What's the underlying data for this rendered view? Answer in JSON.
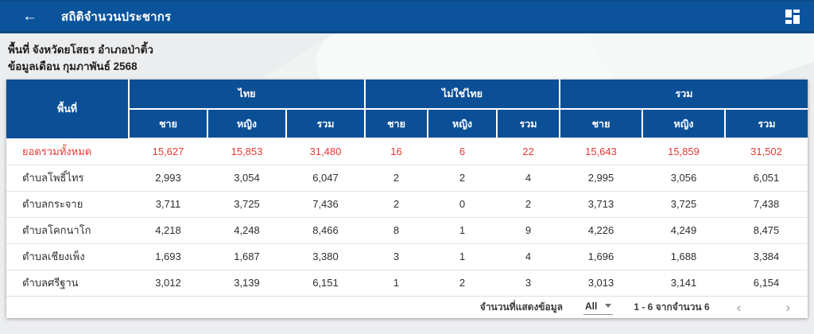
{
  "app_bar": {
    "title": "สถิติจำนวนประชากร",
    "back_icon": "arrow-left",
    "grid_icon": "dashboard-grid",
    "bar_color": "#0b549c"
  },
  "meta": {
    "area_line": "พื้นที่ จังหวัดยโสธร อำเภอป่าติ้ว",
    "month_line": "ข้อมูลเดือน กุมภาพันธ์ 2568"
  },
  "table": {
    "area_header": "พื้นที่",
    "groups": [
      {
        "label": "ไทย"
      },
      {
        "label": "ไม่ใช่ไทย"
      },
      {
        "label": "รวม"
      }
    ],
    "sub_headers": [
      "ชาย",
      "หญิง",
      "รวม"
    ],
    "header_color": "#0b4f96",
    "total_row_color": "#e53935",
    "rows": [
      {
        "area": "ยอดรวมทั้งหมด",
        "highlight": true,
        "values": [
          "15,627",
          "15,853",
          "31,480",
          "16",
          "6",
          "22",
          "15,643",
          "15,859",
          "31,502"
        ]
      },
      {
        "area": "ตำบลโพธิ์ไทร",
        "highlight": false,
        "values": [
          "2,993",
          "3,054",
          "6,047",
          "2",
          "2",
          "4",
          "2,995",
          "3,056",
          "6,051"
        ]
      },
      {
        "area": "ตำบลกระจาย",
        "highlight": false,
        "values": [
          "3,711",
          "3,725",
          "7,436",
          "2",
          "0",
          "2",
          "3,713",
          "3,725",
          "7,438"
        ]
      },
      {
        "area": "ตำบลโคกนาโก",
        "highlight": false,
        "values": [
          "4,218",
          "4,248",
          "8,466",
          "8",
          "1",
          "9",
          "4,226",
          "4,249",
          "8,475"
        ]
      },
      {
        "area": "ตำบลเชียงเพ็ง",
        "highlight": false,
        "values": [
          "1,693",
          "1,687",
          "3,380",
          "3",
          "1",
          "4",
          "1,696",
          "1,688",
          "3,384"
        ]
      },
      {
        "area": "ตำบลศรีฐาน",
        "highlight": false,
        "values": [
          "3,012",
          "3,139",
          "6,151",
          "1",
          "2",
          "3",
          "3,013",
          "3,141",
          "6,154"
        ]
      }
    ]
  },
  "pagination": {
    "rows_label": "จำนวนที่แสดงข้อมูล",
    "page_size_value": "All",
    "range_text": "1 - 6 จากจำนวน 6",
    "prev_icon": "chevron-left",
    "next_icon": "chevron-right",
    "prev_glyph": "‹",
    "next_glyph": "›"
  }
}
